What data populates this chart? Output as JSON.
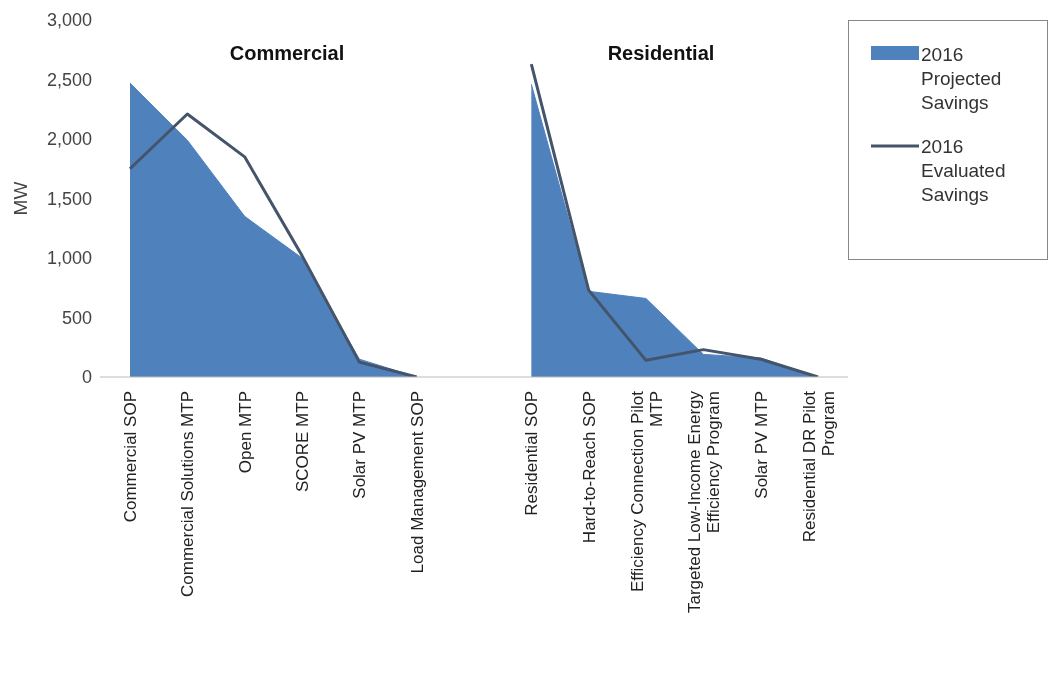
{
  "chart_data": {
    "type": "area",
    "ylabel": "MW",
    "annotations": [
      "Commercial",
      "Residential"
    ],
    "categories": [
      "Commercial SOP",
      "Commercial Solutions MTP",
      "Open MTP",
      "SCORE MTP",
      "Solar PV MTP",
      "Load Management SOP",
      null,
      "Residential SOP",
      "Hard-to-Reach SOP",
      "Efficiency Connection Pilot MTP",
      "Targeted Low-Income Energy Efficiency Program",
      "Solar PV MTP",
      "Residential DR Pilot Program"
    ],
    "series": [
      {
        "name": "2016 Projected Savings",
        "color": "#4f81bd",
        "values": [
          2470,
          1990,
          1350,
          1000,
          150,
          0,
          null,
          2460,
          720,
          660,
          190,
          160,
          0
        ]
      },
      {
        "name": "2016 Evaluated Savings",
        "type": "line",
        "color": "#44546a",
        "values": [
          1750,
          2210,
          1850,
          1020,
          125,
          0,
          null,
          2630,
          730,
          140,
          230,
          150,
          0
        ]
      }
    ],
    "ylim": [
      0,
      3000
    ],
    "yticks": [
      {
        "value": 0,
        "label": "0"
      },
      {
        "value": 500,
        "label": "500"
      },
      {
        "value": 1000,
        "label": "1,000"
      },
      {
        "value": 1500,
        "label": "1,500"
      },
      {
        "value": 2000,
        "label": "2,000"
      },
      {
        "value": 2500,
        "label": "2,500"
      },
      {
        "value": 3000,
        "label": "3,000"
      }
    ],
    "grid": false,
    "legend": "top right"
  }
}
